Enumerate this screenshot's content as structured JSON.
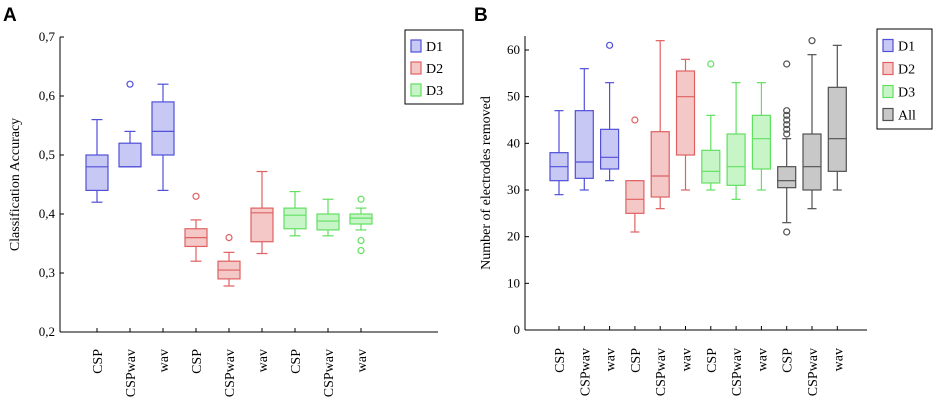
{
  "figure": {
    "panels": [
      {
        "letter": "A"
      },
      {
        "letter": "B"
      }
    ]
  },
  "colors": {
    "D1": {
      "stroke": "#5050d8",
      "fill": "#c8c8f5"
    },
    "D2": {
      "stroke": "#e06060",
      "fill": "#f5c8c8"
    },
    "D3": {
      "stroke": "#60e060",
      "fill": "#c8f5c8"
    },
    "All": {
      "stroke": "#505050",
      "fill": "#c8c8c8"
    },
    "axis": "#000000",
    "legendBorder": "#000000"
  },
  "chart_data": [
    {
      "type": "boxplot",
      "panel": "A",
      "title": "",
      "xlabel": "",
      "ylabel": "Classification Accuracy",
      "ylim": [
        0.2,
        0.7
      ],
      "yticks": [
        0.2,
        0.3,
        0.4,
        0.5,
        0.6,
        0.7
      ],
      "ytick_labels": [
        "0,2",
        "0,3",
        "0,4",
        "0,5",
        "0,6",
        "0,7"
      ],
      "categories": [
        "CSP",
        "CSPwav",
        "wav",
        "CSP",
        "CSPwav",
        "wav",
        "CSP",
        "CSPwav",
        "wav"
      ],
      "legend": [
        "D1",
        "D2",
        "D3"
      ],
      "legend_position": "top-right",
      "boxes": [
        {
          "group": "D1",
          "whisker_low": 0.42,
          "q1": 0.44,
          "median": 0.48,
          "q3": 0.5,
          "whisker_high": 0.56,
          "outliers": []
        },
        {
          "group": "D1",
          "whisker_low": 0.48,
          "q1": 0.48,
          "median": 0.48,
          "q3": 0.52,
          "whisker_high": 0.54,
          "outliers": [
            0.62
          ]
        },
        {
          "group": "D1",
          "whisker_low": 0.44,
          "q1": 0.5,
          "median": 0.54,
          "q3": 0.59,
          "whisker_high": 0.62,
          "outliers": []
        },
        {
          "group": "D2",
          "whisker_low": 0.32,
          "q1": 0.345,
          "median": 0.36,
          "q3": 0.375,
          "whisker_high": 0.39,
          "outliers": [
            0.43
          ]
        },
        {
          "group": "D2",
          "whisker_low": 0.278,
          "q1": 0.29,
          "median": 0.305,
          "q3": 0.32,
          "whisker_high": 0.335,
          "outliers": [
            0.36
          ]
        },
        {
          "group": "D2",
          "whisker_low": 0.333,
          "q1": 0.353,
          "median": 0.402,
          "q3": 0.41,
          "whisker_high": 0.472,
          "outliers": []
        },
        {
          "group": "D3",
          "whisker_low": 0.363,
          "q1": 0.375,
          "median": 0.398,
          "q3": 0.41,
          "whisker_high": 0.438,
          "outliers": []
        },
        {
          "group": "D3",
          "whisker_low": 0.363,
          "q1": 0.373,
          "median": 0.388,
          "q3": 0.4,
          "whisker_high": 0.425,
          "outliers": []
        },
        {
          "group": "D3",
          "whisker_low": 0.373,
          "q1": 0.383,
          "median": 0.393,
          "q3": 0.4,
          "whisker_high": 0.41,
          "outliers": [
            0.338,
            0.355,
            0.425
          ]
        }
      ]
    },
    {
      "type": "boxplot",
      "panel": "B",
      "title": "",
      "xlabel": "",
      "ylabel": "Number of electrodes removed",
      "ylim": [
        0,
        63
      ],
      "yticks": [
        0,
        10,
        20,
        30,
        40,
        50,
        60
      ],
      "ytick_labels": [
        "0",
        "10",
        "20",
        "30",
        "40",
        "50",
        "60"
      ],
      "categories": [
        "CSP",
        "CSPwav",
        "wav",
        "CSP",
        "CSPwav",
        "wav",
        "CSP",
        "CSPwav",
        "wav",
        "CSP",
        "CSPwav",
        "wav"
      ],
      "legend": [
        "D1",
        "D2",
        "D3",
        "All"
      ],
      "legend_position": "top-right",
      "boxes": [
        {
          "group": "D1",
          "whisker_low": 29,
          "q1": 32,
          "median": 35,
          "q3": 38,
          "whisker_high": 47,
          "outliers": []
        },
        {
          "group": "D1",
          "whisker_low": 30,
          "q1": 32.5,
          "median": 36,
          "q3": 47,
          "whisker_high": 56,
          "outliers": []
        },
        {
          "group": "D1",
          "whisker_low": 32,
          "q1": 34.5,
          "median": 37,
          "q3": 43,
          "whisker_high": 53,
          "outliers": [
            61
          ]
        },
        {
          "group": "D2",
          "whisker_low": 21,
          "q1": 25,
          "median": 28,
          "q3": 32,
          "whisker_high": 32,
          "outliers": [
            45
          ]
        },
        {
          "group": "D2",
          "whisker_low": 26,
          "q1": 28.5,
          "median": 33,
          "q3": 42.5,
          "whisker_high": 62,
          "outliers": []
        },
        {
          "group": "D2",
          "whisker_low": 30,
          "q1": 37.5,
          "median": 50,
          "q3": 55.5,
          "whisker_high": 58,
          "outliers": []
        },
        {
          "group": "D3",
          "whisker_low": 30,
          "q1": 31.5,
          "median": 34,
          "q3": 38.5,
          "whisker_high": 46,
          "outliers": [
            57
          ]
        },
        {
          "group": "D3",
          "whisker_low": 28,
          "q1": 31,
          "median": 35,
          "q3": 42,
          "whisker_high": 53,
          "outliers": []
        },
        {
          "group": "D3",
          "whisker_low": 30,
          "q1": 34.5,
          "median": 41,
          "q3": 46,
          "whisker_high": 53,
          "outliers": []
        },
        {
          "group": "All",
          "whisker_low": 23,
          "q1": 30.5,
          "median": 32,
          "q3": 35,
          "whisker_high": 41,
          "outliers": [
            21,
            42,
            43,
            44,
            45,
            46,
            47,
            57
          ]
        },
        {
          "group": "All",
          "whisker_low": 26,
          "q1": 30,
          "median": 35,
          "q3": 42,
          "whisker_high": 59,
          "outliers": [
            62
          ]
        },
        {
          "group": "All",
          "whisker_low": 30,
          "q1": 34,
          "median": 41,
          "q3": 52,
          "whisker_high": 61,
          "outliers": []
        }
      ]
    }
  ]
}
